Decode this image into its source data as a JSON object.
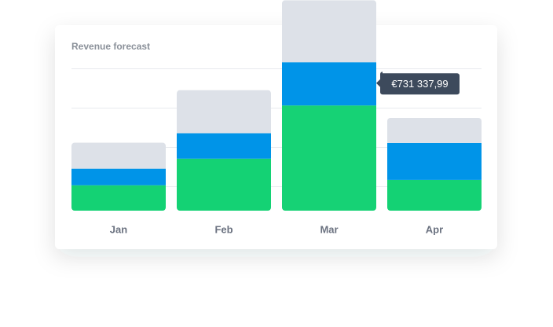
{
  "chart_data": {
    "type": "stacked-bar",
    "title": "Revenue forecast",
    "categories": [
      "Jan",
      "Feb",
      "Mar",
      "Apr"
    ],
    "series": [
      {
        "color": "#14d274",
        "values": [
          430000,
          880000,
          1780000,
          520000
        ]
      },
      {
        "color": "#0094e8",
        "values": [
          280000,
          430000,
          731337.99,
          625000
        ],
        "value_labels": [
          null,
          null,
          "€731 337,99",
          null
        ]
      },
      {
        "color": "#dde1e8",
        "values": [
          440000,
          730000,
          1050000,
          425000
        ]
      }
    ],
    "ylim": [
      0,
      3565000
    ],
    "grid": true
  }
}
